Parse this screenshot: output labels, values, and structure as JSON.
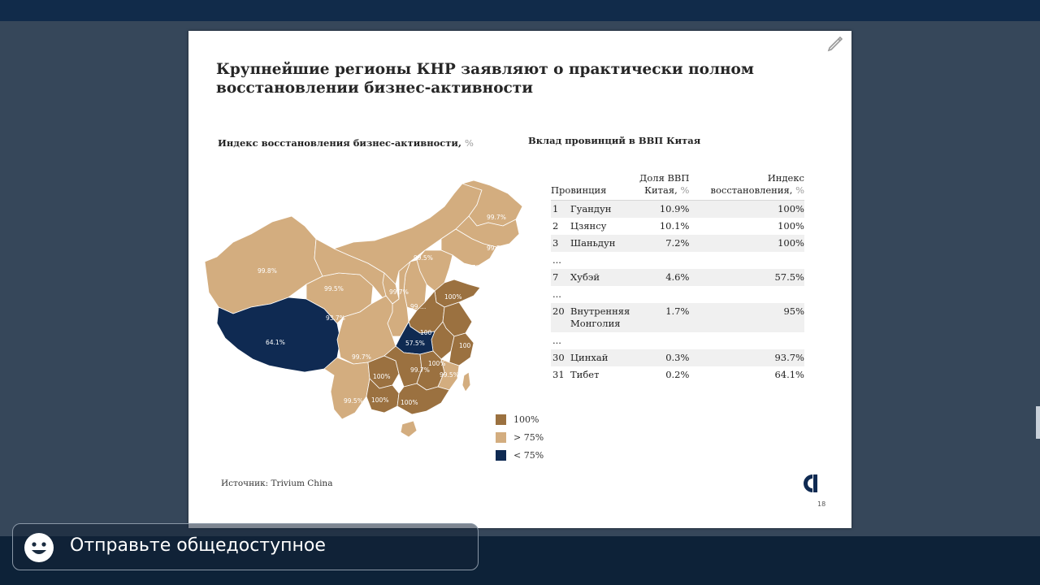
{
  "slide": {
    "title": "Крупнейшие регионы КНР заявляют о практически полном восстановлении бизнес-активности",
    "map_heading": "Индекс восстановления бизнес-активности,",
    "map_heading_unit": "%",
    "table_heading": "Вклад провинций в ВВП Китая",
    "map": {
      "labels": [
        "99.8%",
        "99.5%",
        "93.7%",
        "64.1%",
        "99.7%",
        "99.5%",
        "99.7%",
        "99.5%",
        "99.7%",
        "99.5%",
        "99.7%",
        "99.…",
        "100%",
        "100",
        "57.5%",
        "99.7%",
        "100%",
        "100%",
        "100%",
        "100%",
        "99.5%",
        "100"
      ],
      "colors": {
        "full": "#9b7140",
        "above75": "#d3ad7f",
        "below75": "#0f2a52"
      }
    },
    "legend": [
      {
        "label": "100%",
        "color": "#9b7140"
      },
      {
        "label": "> 75%",
        "color": "#d3ad7f"
      },
      {
        "label": "< 75%",
        "color": "#0f2a52"
      }
    ],
    "table": {
      "headers": {
        "province": "Провинция",
        "gdp_share": "Доля ВВП",
        "gdp_share_2": "Китая,",
        "recovery": "Индекс",
        "recovery_2": "восстановления,",
        "unit": "%"
      },
      "rows": [
        {
          "rank": "1",
          "name": "Гуандун",
          "name2": "",
          "share": "10.9%",
          "index": "100%"
        },
        {
          "rank": "2",
          "name": "Цзянсу",
          "name2": "",
          "share": "10.1%",
          "index": "100%"
        },
        {
          "rank": "3",
          "name": "Шаньдун",
          "name2": "",
          "share": "7.2%",
          "index": "100%"
        },
        {
          "rank": "...",
          "name": "",
          "name2": "",
          "share": "",
          "index": ""
        },
        {
          "rank": "7",
          "name": "Хубэй",
          "name2": "",
          "share": "4.6%",
          "index": "57.5%"
        },
        {
          "rank": "...",
          "name": "",
          "name2": "",
          "share": "",
          "index": ""
        },
        {
          "rank": "20",
          "name": "Внутренняя",
          "name2": "Монголия",
          "share": "1.7%",
          "index": "95%"
        },
        {
          "rank": "...",
          "name": "",
          "name2": "",
          "share": "",
          "index": ""
        },
        {
          "rank": "30",
          "name": "Цинхай",
          "name2": "",
          "share": "0.3%",
          "index": "93.7%"
        },
        {
          "rank": "31",
          "name": "Тибет",
          "name2": "",
          "share": "0.2%",
          "index": "64.1%"
        }
      ]
    },
    "source": "Источник: Trivium China",
    "page_number": "18"
  },
  "chat": {
    "input_text": "Отправьте общедоступное"
  },
  "icons": {
    "edit": "pencil-icon",
    "emoji": "smiley-icon",
    "brand": "company-logo"
  }
}
